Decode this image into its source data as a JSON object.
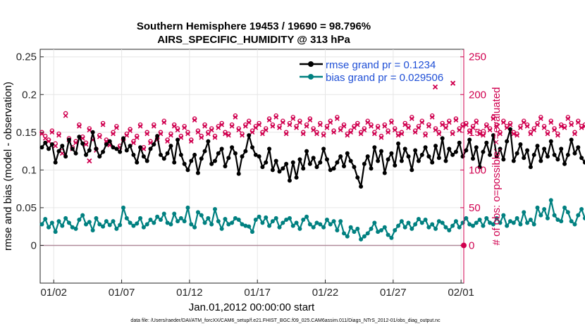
{
  "chart_data": {
    "type": "line",
    "title_line1": "Southern Hemisphere 19453 / 19690 = 98.796%",
    "title_line2": "AIRS_SPECIFIC_HUMIDITY @ 313 hPa",
    "ylabel_left": "rmse and bias (model - observation)",
    "ylabel_right": "# of obs: o=possible; ×=evaluated",
    "xlabel": "Jan.01,2012 00:00:00 start",
    "footer": "data file: /Users/raeder/DAI/ATM_forcXX/CAM6_setup/f.e21.FHIST_BGC.f09_025.CAM6assim.011/Diags_NTrS_2012-01/obs_diag_output.nc",
    "ylim_left": [
      -0.05,
      0.26
    ],
    "ylim_right": [
      -50,
      260
    ],
    "xlim": [
      0.0,
      31.2
    ],
    "yticks_left": [
      {
        "v": 0,
        "label": "0"
      },
      {
        "v": 0.05,
        "label": "0.05"
      },
      {
        "v": 0.1,
        "label": "0.1"
      },
      {
        "v": 0.15,
        "label": "0.15"
      },
      {
        "v": 0.2,
        "label": "0.2"
      },
      {
        "v": 0.25,
        "label": "0.25"
      }
    ],
    "yticks_right": [
      {
        "v": 0,
        "label": "0"
      },
      {
        "v": 50,
        "label": "50"
      },
      {
        "v": 100,
        "label": "100"
      },
      {
        "v": 150,
        "label": "150"
      },
      {
        "v": 200,
        "label": "200"
      },
      {
        "v": 250,
        "label": "250"
      }
    ],
    "xticks": [
      {
        "v": 1,
        "label": "01/02"
      },
      {
        "v": 6,
        "label": "01/07"
      },
      {
        "v": 11,
        "label": "01/12"
      },
      {
        "v": 16,
        "label": "01/17"
      },
      {
        "v": 21,
        "label": "01/22"
      },
      {
        "v": 26,
        "label": "01/27"
      },
      {
        "v": 31,
        "label": "02/01"
      }
    ],
    "x_start": 0.125,
    "x_step": 0.25,
    "series": [
      {
        "name": "rmse grand pr = 0.1234",
        "color": "#000000",
        "values": [
          0.13,
          0.136,
          0.128,
          0.134,
          0.11,
          0.125,
          0.132,
          0.118,
          0.14,
          0.128,
          0.122,
          0.144,
          0.135,
          0.12,
          0.126,
          0.15,
          0.128,
          0.118,
          0.124,
          0.134,
          0.138,
          0.13,
          0.128,
          0.124,
          0.142,
          0.126,
          0.132,
          0.12,
          0.11,
          0.13,
          0.118,
          0.112,
          0.128,
          0.134,
          0.145,
          0.12,
          0.115,
          0.122,
          0.132,
          0.11,
          0.14,
          0.12,
          0.108,
          0.1,
          0.112,
          0.12,
          0.096,
          0.115,
          0.125,
          0.138,
          0.108,
          0.112,
          0.122,
          0.128,
          0.105,
          0.116,
          0.13,
          0.122,
          0.095,
          0.118,
          0.125,
          0.146,
          0.13,
          0.12,
          0.118,
          0.104,
          0.11,
          0.128,
          0.1,
          0.112,
          0.098,
          0.102,
          0.108,
          0.086,
          0.11,
          0.09,
          0.114,
          0.102,
          0.125,
          0.108,
          0.116,
          0.104,
          0.11,
          0.128,
          0.114,
          0.1,
          0.102,
          0.11,
          0.118,
          0.105,
          0.122,
          0.112,
          0.104,
          0.09,
          0.078,
          0.108,
          0.118,
          0.102,
          0.13,
          0.112,
          0.125,
          0.096,
          0.114,
          0.122,
          0.106,
          0.135,
          0.112,
          0.128,
          0.118,
          0.1,
          0.126,
          0.112,
          0.12,
          0.13,
          0.118,
          0.11,
          0.132,
          0.116,
          0.142,
          0.112,
          0.128,
          0.12,
          0.124,
          0.136,
          0.118,
          0.126,
          0.14,
          0.115,
          0.13,
          0.104,
          0.124,
          0.136,
          0.12,
          0.146,
          0.118,
          0.128,
          0.114,
          0.138,
          0.154,
          0.112,
          0.122,
          0.134,
          0.116,
          0.126,
          0.104,
          0.12,
          0.132,
          0.112,
          0.128,
          0.118,
          0.138,
          0.12,
          0.114,
          0.128,
          0.108,
          0.12,
          0.14,
          0.122,
          0.13,
          0.116,
          0.11,
          0.132,
          0.124,
          0.1,
          0.118,
          0.112,
          0.128,
          0.114,
          0.145,
          0.126,
          0.116,
          0.138,
          0.15,
          0.128,
          0.122,
          0.118,
          0.135,
          0.125,
          0.11,
          0.132,
          0.118,
          0.14,
          0.126,
          0.112,
          0.13,
          0.14,
          0.145,
          0.122,
          0.1,
          0.115,
          0.128,
          0.12,
          0.106,
          0.118,
          0.145,
          0.125
        ]
      },
      {
        "name": "bias grand pr = 0.029506",
        "color": "#008080",
        "values": [
          0.028,
          0.035,
          0.024,
          0.03,
          0.018,
          0.032,
          0.026,
          0.036,
          0.03,
          0.024,
          0.022,
          0.034,
          0.04,
          0.028,
          0.031,
          0.02,
          0.036,
          0.028,
          0.025,
          0.032,
          0.027,
          0.032,
          0.022,
          0.027,
          0.05,
          0.036,
          0.03,
          0.026,
          0.029,
          0.036,
          0.024,
          0.028,
          0.034,
          0.03,
          0.038,
          0.034,
          0.042,
          0.03,
          0.028,
          0.042,
          0.032,
          0.036,
          0.032,
          0.05,
          0.028,
          0.024,
          0.044,
          0.04,
          0.03,
          0.036,
          0.028,
          0.048,
          0.032,
          0.022,
          0.035,
          0.028,
          0.03,
          0.036,
          0.034,
          0.028,
          0.026,
          0.025,
          0.018,
          0.034,
          0.038,
          0.03,
          0.037,
          0.026,
          0.032,
          0.036,
          0.024,
          0.03,
          0.034,
          0.036,
          0.026,
          0.03,
          0.022,
          0.034,
          0.038,
          0.028,
          0.024,
          0.03,
          0.028,
          0.024,
          0.034,
          0.028,
          0.032,
          0.02,
          0.032,
          0.016,
          0.012,
          0.024,
          0.018,
          0.022,
          0.008,
          0.012,
          0.016,
          0.022,
          0.03,
          0.018,
          0.02,
          0.024,
          0.014,
          0.01,
          0.02,
          0.026,
          0.032,
          0.024,
          0.03,
          0.022,
          0.028,
          0.035,
          0.03,
          0.034,
          0.024,
          0.028,
          0.022,
          0.032,
          0.03,
          0.024,
          0.02,
          0.026,
          0.032,
          0.024,
          0.03,
          0.036,
          0.028,
          0.026,
          0.03,
          0.034,
          0.026,
          0.036,
          0.03,
          0.028,
          0.036,
          0.03,
          0.04,
          0.026,
          0.032,
          0.03,
          0.036,
          0.028,
          0.044,
          0.03,
          0.034,
          0.028,
          0.05,
          0.04,
          0.048,
          0.036,
          0.06,
          0.04,
          0.034,
          0.032,
          0.05,
          0.044,
          0.032,
          0.028,
          0.04,
          0.048,
          0.036,
          0.03,
          0.02,
          0.028,
          0.034,
          0.04,
          0.032,
          0.036,
          0.028,
          0.03,
          0.034,
          0.044,
          0.03,
          0.036,
          0.032,
          0.024,
          0.028,
          0.024,
          0.036,
          0.03,
          0.034,
          0.026,
          0.02,
          0.03,
          0.028,
          0.04,
          0.03,
          0.036,
          0.024,
          0.028,
          0.032,
          0.036,
          0.028,
          0.024,
          0.032,
          0.03,
          0.036,
          0.024,
          0.03
        ]
      }
    ],
    "obs_possible": {
      "color": "#d0004f",
      "values": [
        150,
        145,
        140,
        152,
        135,
        148,
        125,
        175,
        142,
        130,
        138,
        160,
        144,
        136,
        155,
        142,
        128,
        146,
        162,
        140,
        135,
        150,
        158,
        132,
        140,
        148,
        154,
        138,
        145,
        160,
        130,
        150,
        138,
        160,
        142,
        150,
        165,
        140,
        148,
        160,
        155,
        145,
        158,
        150,
        140,
        168,
        152,
        145,
        160,
        150,
        155,
        145,
        158,
        162,
        150,
        148,
        160,
        172,
        155,
        148,
        160,
        165,
        152,
        158,
        162,
        150,
        155,
        168,
        160,
        172,
        158,
        165,
        150,
        162,
        170,
        158,
        165,
        150,
        160,
        168,
        155,
        150,
        162,
        148,
        158,
        165,
        152,
        170,
        155,
        160,
        148,
        152,
        158,
        162,
        150,
        155,
        165,
        160,
        150,
        158,
        145,
        160,
        152,
        165,
        155,
        148,
        150,
        162,
        158,
        170,
        152,
        158,
        165,
        148,
        160,
        172,
        155,
        150,
        162,
        158,
        165,
        150,
        168,
        155,
        160,
        162,
        152,
        158,
        165,
        150,
        148,
        160,
        155,
        170,
        160,
        150,
        165,
        158,
        162,
        150,
        148,
        158,
        165,
        160,
        150,
        155,
        162,
        170,
        158,
        150,
        165,
        155,
        148,
        160,
        158,
        170,
        162,
        150,
        165,
        158,
        160,
        150,
        155,
        168,
        162,
        150,
        158,
        165,
        160,
        152,
        165,
        170,
        158,
        160,
        150,
        172,
        165,
        160,
        158,
        168,
        175,
        162,
        170,
        158,
        165,
        160,
        175,
        160,
        165,
        168,
        170,
        165,
        172,
        168,
        175,
        160,
        170,
        165
      ]
    },
    "obs_evaluated": {
      "color": "#d0004f",
      "values": [
        148,
        142,
        138,
        150,
        132,
        146,
        122,
        172,
        140,
        128,
        136,
        158,
        142,
        134,
        153,
        140,
        126,
        144,
        160,
        138,
        133,
        148,
        156,
        130,
        138,
        146,
        152,
        136,
        143,
        158,
        128,
        148,
        136,
        158,
        140,
        148,
        163,
        138,
        146,
        158,
        153,
        143,
        156,
        148,
        138,
        166,
        150,
        143,
        158,
        148,
        153,
        143,
        156,
        160,
        148,
        146,
        158,
        170,
        153,
        146,
        158,
        163,
        150,
        156,
        160,
        148,
        153,
        166,
        158,
        170,
        156,
        163,
        148,
        160,
        168,
        156,
        163,
        148,
        158,
        166,
        153,
        148,
        160,
        146,
        156,
        163,
        150,
        168,
        153,
        158,
        146,
        150,
        156,
        160,
        148,
        153,
        163,
        158,
        148,
        156,
        143,
        158,
        150,
        163,
        153,
        146,
        148,
        160,
        156,
        168,
        150,
        156,
        163,
        146,
        158,
        170,
        153,
        148,
        160,
        156,
        163,
        148,
        166,
        153,
        158,
        160,
        150,
        156,
        163,
        148,
        146,
        158,
        153,
        168,
        158,
        148,
        163,
        156,
        160,
        148,
        146,
        156,
        163,
        158,
        148,
        153,
        160,
        168,
        156,
        148,
        163,
        153,
        146,
        158,
        156,
        168,
        160,
        148,
        163,
        156,
        158,
        148,
        153,
        166,
        160,
        148,
        156,
        163,
        158,
        150,
        163,
        168,
        156,
        158,
        148,
        170,
        163,
        158,
        156,
        166,
        173,
        160,
        168,
        156,
        163,
        158,
        173,
        158,
        163,
        166,
        168,
        163,
        170,
        166,
        173,
        158,
        168,
        163
      ]
    },
    "extreme_points": [
      {
        "x": 3.625,
        "obs": 112
      },
      {
        "x": 29.1,
        "obs": 210
      },
      {
        "x": 30.4,
        "obs": 215
      }
    ]
  }
}
